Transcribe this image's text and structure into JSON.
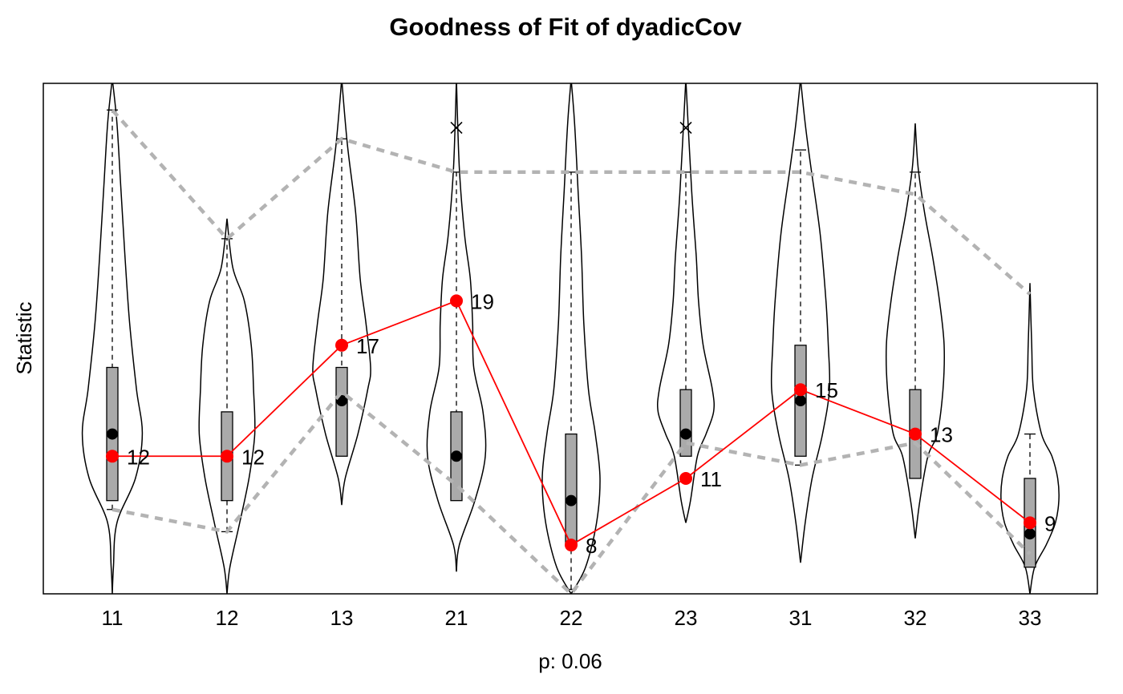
{
  "chart_data": {
    "type": "violin",
    "title": "Goodness of Fit of dyadicCov",
    "xlabel": "p: 0.06",
    "ylabel": "Statistic",
    "ylim": [
      5.8,
      28.8
    ],
    "categories": [
      "11",
      "12",
      "13",
      "21",
      "22",
      "23",
      "31",
      "32",
      "33"
    ],
    "observed": {
      "color": "#ff0000",
      "values": [
        12,
        12,
        17,
        19,
        8,
        11,
        15,
        13,
        9
      ],
      "labels": [
        "12",
        "12",
        "17",
        "19",
        "8",
        "11",
        "15",
        "13",
        "9"
      ]
    },
    "band_color": "#b3b3b3",
    "band_upper": [
      27.6,
      21.8,
      26.3,
      24.8,
      24.8,
      24.8,
      24.8,
      23.8,
      19.3
    ],
    "band_lower": [
      9.6,
      8.6,
      14.9,
      10.7,
      5.8,
      12.6,
      11.6,
      12.6,
      7.6
    ],
    "box_color": "#aaaaaa",
    "medians": [
      13,
      12,
      14.5,
      12,
      10,
      13,
      14.5,
      13,
      8.5
    ],
    "boxes": [
      {
        "q1": 10,
        "q3": 16
      },
      {
        "q1": 10,
        "q3": 14
      },
      {
        "q1": 12,
        "q3": 16
      },
      {
        "q1": 10,
        "q3": 14
      },
      {
        "q1": 8,
        "q3": 13
      },
      {
        "q1": 12,
        "q3": 15
      },
      {
        "q1": 12,
        "q3": 17
      },
      {
        "q1": 11,
        "q3": 15
      },
      {
        "q1": 7,
        "q3": 11
      }
    ],
    "whiskers": [
      {
        "low": 9.6,
        "high": 27.6
      },
      {
        "low": 8.6,
        "high": 21.8
      },
      {
        "low": 14.9,
        "high": 26.3
      },
      {
        "low": 10.7,
        "high": 24.8
      },
      {
        "low": 6.0,
        "high": 24.8
      },
      {
        "low": 12.6,
        "high": 24.8
      },
      {
        "low": 11.6,
        "high": 25.8
      },
      {
        "low": 12.6,
        "high": 24.8
      },
      {
        "low": 7.6,
        "high": 13.0
      }
    ],
    "outliers": [
      {
        "category": "21",
        "value": 26.8
      },
      {
        "category": "23",
        "value": 26.8
      }
    ],
    "violins": [
      {
        "min": 5.8,
        "max": 29.0,
        "profile": [
          [
            5.8,
            0
          ],
          [
            7,
            0.02
          ],
          [
            9,
            0.08
          ],
          [
            11,
            0.4
          ],
          [
            13,
            0.52
          ],
          [
            15,
            0.42
          ],
          [
            18,
            0.3
          ],
          [
            21,
            0.22
          ],
          [
            24,
            0.15
          ],
          [
            27,
            0.08
          ],
          [
            29,
            0
          ]
        ]
      },
      {
        "min": 5.8,
        "max": 22.7,
        "profile": [
          [
            5.8,
            0
          ],
          [
            7,
            0.05
          ],
          [
            9,
            0.22
          ],
          [
            11,
            0.38
          ],
          [
            13,
            0.48
          ],
          [
            15,
            0.46
          ],
          [
            17,
            0.42
          ],
          [
            19,
            0.3
          ],
          [
            20.5,
            0.1
          ],
          [
            22.7,
            0
          ]
        ]
      },
      {
        "min": 9.8,
        "max": 29.0,
        "profile": [
          [
            9.8,
            0
          ],
          [
            11,
            0.06
          ],
          [
            13,
            0.28
          ],
          [
            15,
            0.45
          ],
          [
            16,
            0.5
          ],
          [
            18,
            0.42
          ],
          [
            20,
            0.32
          ],
          [
            23,
            0.24
          ],
          [
            26,
            0.1
          ],
          [
            29,
            0
          ]
        ]
      },
      {
        "min": 6.8,
        "max": 29.0,
        "profile": [
          [
            6.8,
            0
          ],
          [
            8,
            0.05
          ],
          [
            10,
            0.32
          ],
          [
            12,
            0.5
          ],
          [
            14,
            0.46
          ],
          [
            16,
            0.3
          ],
          [
            18,
            0.28
          ],
          [
            20,
            0.24
          ],
          [
            22,
            0.14
          ],
          [
            25,
            0.05
          ],
          [
            29,
            0
          ]
        ]
      },
      {
        "min": 5.8,
        "max": 29.0,
        "profile": [
          [
            5.8,
            0
          ],
          [
            7,
            0.25
          ],
          [
            9,
            0.44
          ],
          [
            11,
            0.5
          ],
          [
            13,
            0.42
          ],
          [
            15,
            0.3
          ],
          [
            18,
            0.22
          ],
          [
            21,
            0.18
          ],
          [
            24,
            0.12
          ],
          [
            27,
            0.06
          ],
          [
            29,
            0
          ]
        ]
      },
      {
        "min": 9.0,
        "max": 29.0,
        "profile": [
          [
            9,
            0
          ],
          [
            10,
            0.08
          ],
          [
            12,
            0.2
          ],
          [
            13,
            0.35
          ],
          [
            14,
            0.48
          ],
          [
            15,
            0.46
          ],
          [
            17,
            0.3
          ],
          [
            19,
            0.22
          ],
          [
            21,
            0.18
          ],
          [
            24,
            0.1
          ],
          [
            29,
            0
          ]
        ]
      },
      {
        "min": 7.2,
        "max": 29.0,
        "profile": [
          [
            7.2,
            0
          ],
          [
            9,
            0.08
          ],
          [
            11,
            0.2
          ],
          [
            13,
            0.38
          ],
          [
            15,
            0.5
          ],
          [
            17,
            0.48
          ],
          [
            19,
            0.44
          ],
          [
            22,
            0.34
          ],
          [
            25,
            0.18
          ],
          [
            27,
            0.08
          ],
          [
            29,
            0
          ]
        ]
      },
      {
        "min": 8.3,
        "max": 27.0,
        "profile": [
          [
            8.3,
            0
          ],
          [
            10,
            0.08
          ],
          [
            12,
            0.22
          ],
          [
            13,
            0.38
          ],
          [
            15,
            0.48
          ],
          [
            17,
            0.5
          ],
          [
            19,
            0.42
          ],
          [
            21,
            0.3
          ],
          [
            23,
            0.16
          ],
          [
            25,
            0.05
          ],
          [
            27,
            0
          ]
        ]
      },
      {
        "min": 5.8,
        "max": 19.8,
        "profile": [
          [
            5.8,
            0
          ],
          [
            7,
            0.08
          ],
          [
            8,
            0.28
          ],
          [
            9,
            0.44
          ],
          [
            10,
            0.5
          ],
          [
            11,
            0.48
          ],
          [
            12,
            0.38
          ],
          [
            13,
            0.2
          ],
          [
            15,
            0.06
          ],
          [
            17,
            0.03
          ],
          [
            19.8,
            0
          ]
        ]
      }
    ]
  }
}
